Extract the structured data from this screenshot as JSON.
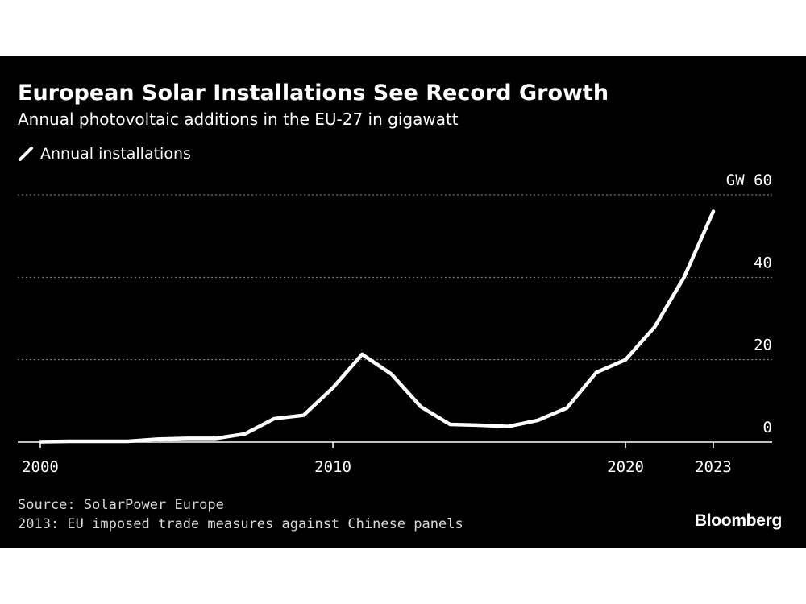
{
  "header": {
    "title": "European Solar Installations See Record Growth",
    "subtitle": "Annual photovoltaic additions in the EU-27 in gigawatt"
  },
  "legend": {
    "label": "Annual installations",
    "color": "#ffffff"
  },
  "footer": {
    "source": "Source: SolarPower Europe",
    "note": "2013: EU imposed trade measures against Chinese panels",
    "brand": "Bloomberg"
  },
  "colors": {
    "background": "#000000",
    "line": "#ffffff",
    "grid": "#8c8c8c"
  },
  "chart_data": {
    "type": "line",
    "title": "European Solar Installations See Record Growth",
    "subtitle": "Annual photovoltaic additions in the EU-27 in gigawatt",
    "ylabel": "GW",
    "ylim": [
      0,
      60
    ],
    "xlim": [
      2000,
      2023
    ],
    "y_ticks": [
      {
        "value": 60,
        "label": "GW 60"
      },
      {
        "value": 40,
        "label": "40"
      },
      {
        "value": 20,
        "label": "20"
      },
      {
        "value": 0,
        "label": "0"
      }
    ],
    "x_ticks": [
      {
        "value": 2000,
        "label": "2000"
      },
      {
        "value": 2010,
        "label": "2010"
      },
      {
        "value": 2020,
        "label": "2020"
      },
      {
        "value": 2023,
        "label": "2023"
      }
    ],
    "grid": true,
    "series": [
      {
        "name": "Annual installations",
        "x": [
          2000,
          2001,
          2002,
          2003,
          2004,
          2005,
          2006,
          2007,
          2008,
          2009,
          2010,
          2011,
          2012,
          2013,
          2014,
          2015,
          2016,
          2017,
          2018,
          2019,
          2020,
          2021,
          2022,
          2023
        ],
        "values": [
          0.1,
          0.2,
          0.2,
          0.2,
          0.7,
          0.9,
          0.9,
          2.0,
          5.7,
          6.5,
          13.2,
          21.3,
          16.5,
          8.6,
          4.3,
          4.1,
          3.8,
          5.3,
          8.3,
          16.9,
          20.0,
          28.0,
          40.0,
          56.0
        ]
      }
    ]
  }
}
